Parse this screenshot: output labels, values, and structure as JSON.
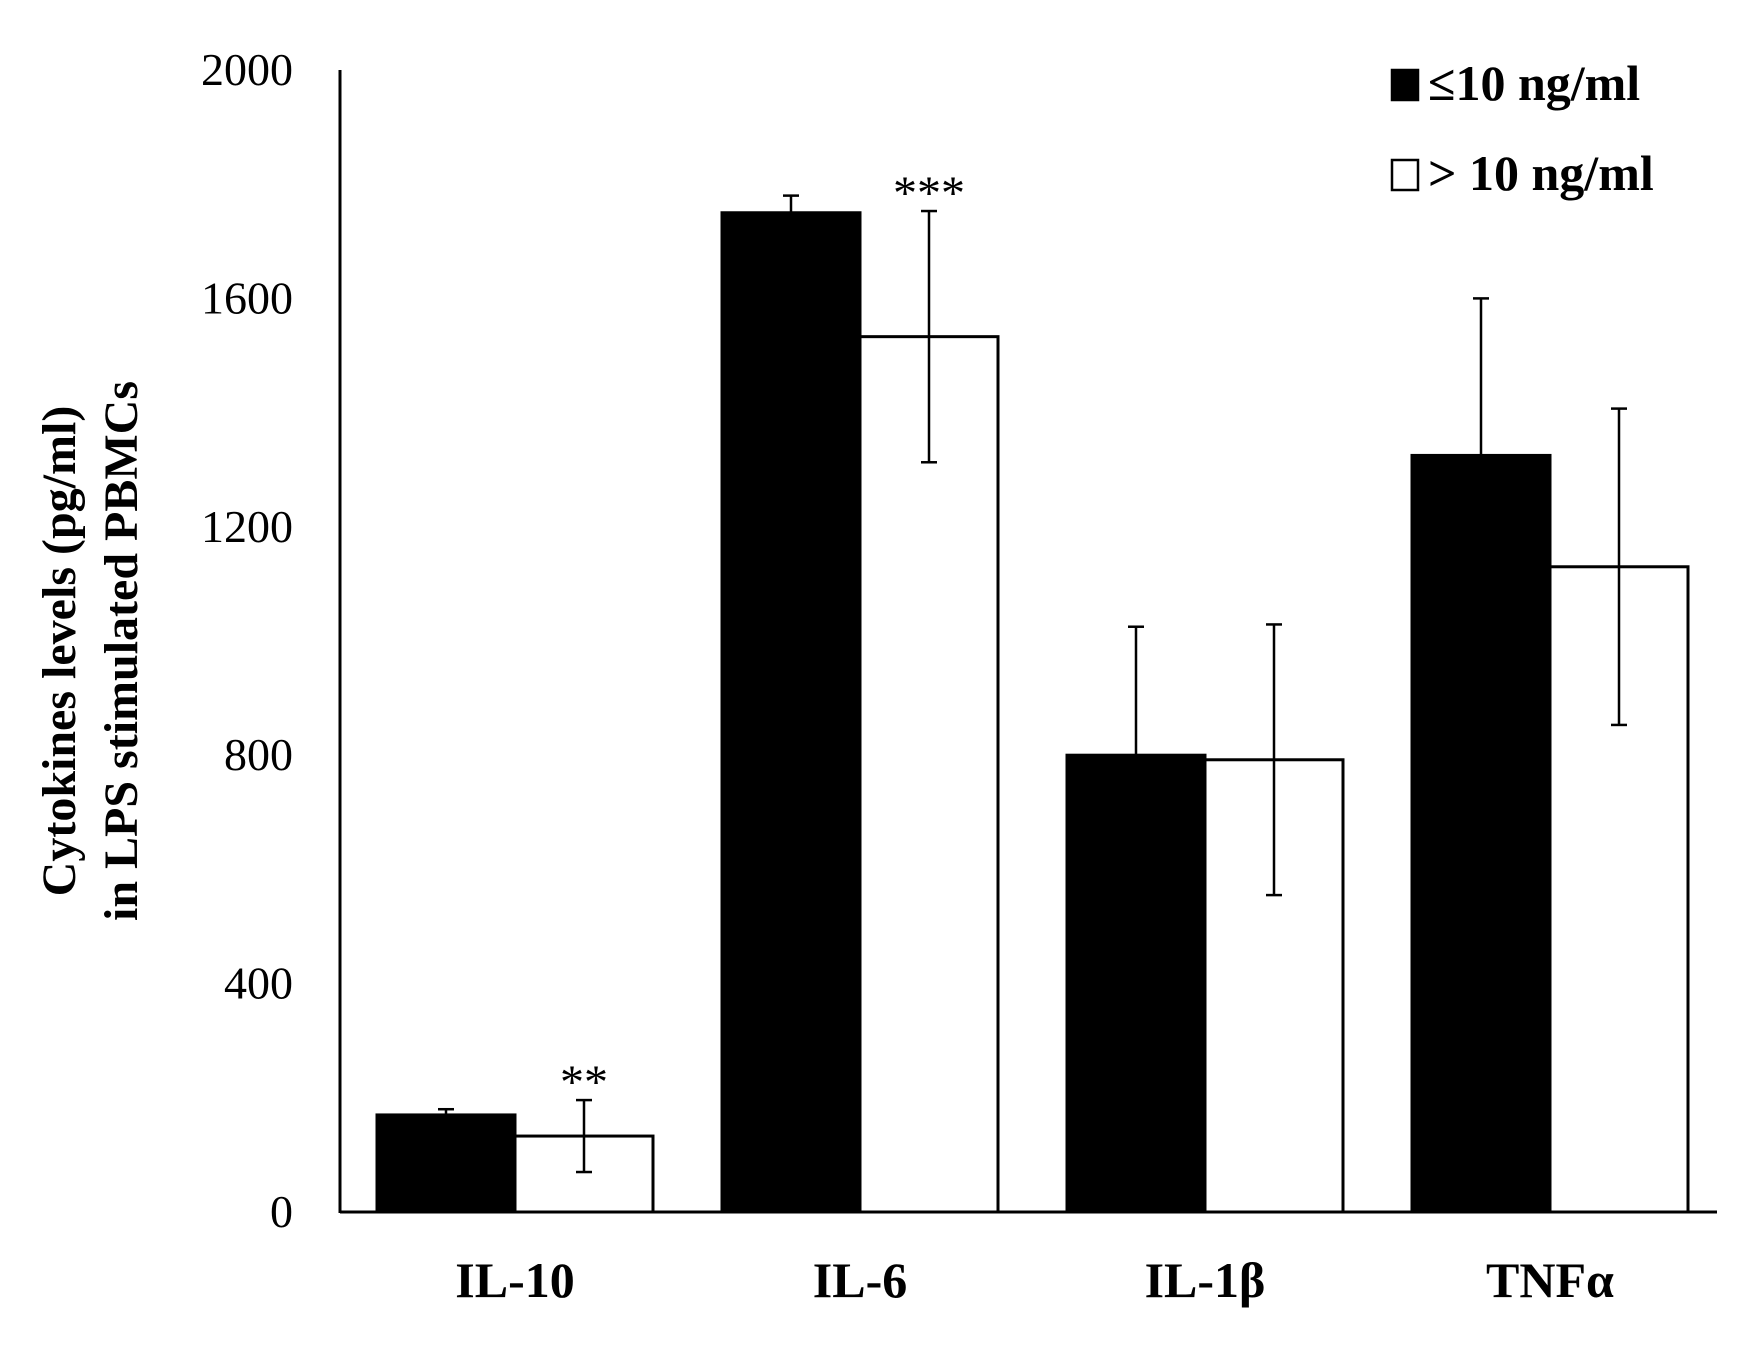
{
  "chart_data": {
    "type": "bar",
    "title": "",
    "xlabel": "",
    "ylabel_lines": [
      "Cytokines levels (pg/ml)",
      "in LPS stimulated PBMCs"
    ],
    "ylim": [
      0,
      2000
    ],
    "yticks": [
      0,
      400,
      800,
      1200,
      1600,
      2000
    ],
    "grid": false,
    "legend_position": "top-right",
    "categories": [
      "IL-10",
      "IL-6",
      "IL-1β",
      "TNFα"
    ],
    "series": [
      {
        "name": "≤10 ng/ml",
        "fill": "#000000",
        "values": [
          170,
          1750,
          800,
          1325
        ],
        "errors": [
          10,
          30,
          225,
          275
        ]
      },
      {
        "name": "> 10 ng/ml",
        "fill": "#ffffff",
        "values": [
          133,
          1533,
          792,
          1130
        ],
        "errors": [
          63,
          220,
          237,
          277
        ]
      }
    ],
    "annotations": [
      {
        "text": "**",
        "category": "IL-10",
        "series": 1
      },
      {
        "text": "***",
        "category": "IL-6",
        "series": 1
      }
    ]
  }
}
